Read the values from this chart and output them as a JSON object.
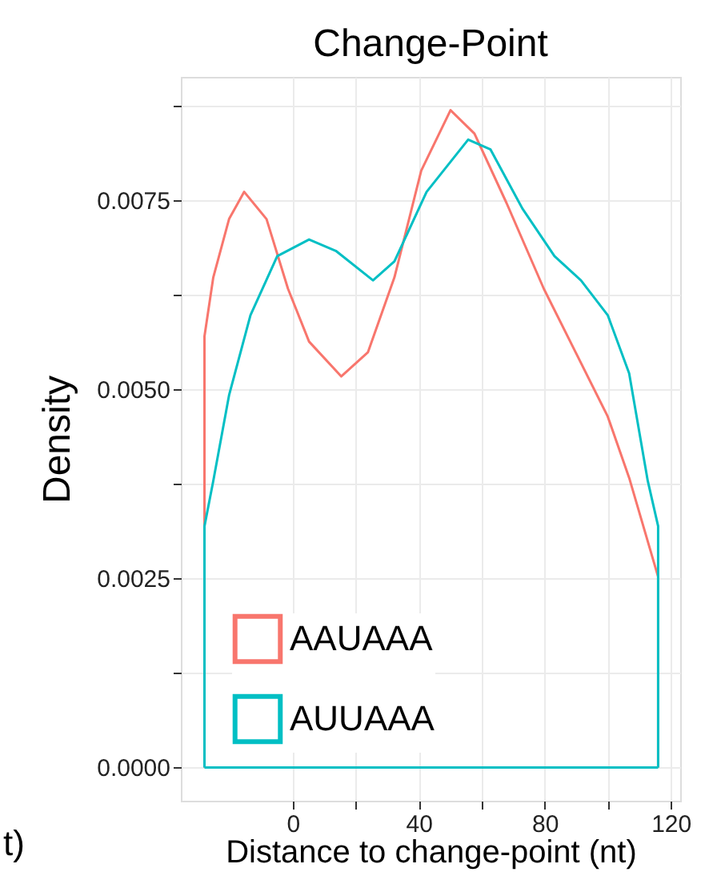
{
  "chart_data": {
    "type": "line",
    "title": "Change-Point",
    "xlabel": "Distance to change-point (nt)",
    "ylabel": "Density",
    "xlim": [
      -35.5,
      123
    ],
    "xticks": [
      0,
      {
        "value": 20,
        "label": null
      },
      40,
      {
        "value": 60,
        "label": null
      },
      80,
      {
        "value": 100,
        "label": null
      },
      120
    ],
    "ylim": [
      -0.00044,
      0.00913
    ],
    "yticks": [
      {
        "value": 0,
        "label": "0.0000"
      },
      {
        "value": 0.00125,
        "label": null
      },
      0.0025,
      {
        "value": 0.00375,
        "label": null
      },
      {
        "value": 0.005,
        "label": "0.0050"
      },
      {
        "value": 0.00625,
        "label": null
      },
      0.0075,
      {
        "value": 0.00875,
        "label": null
      }
    ],
    "ref_lines": [
      {
        "axis": "y",
        "value": 0,
        "color": "#00bfc4"
      }
    ],
    "grid": true,
    "legend": "bottom left",
    "marker": "none",
    "line_style": "solid",
    "annotations": [
      "t)"
    ],
    "series": [
      {
        "name": "AAUAAA",
        "color": "#f8766d",
        "x": [
          -28,
          -28,
          -25.2,
          -20.2,
          -15.4,
          -8.3,
          -1.5,
          5.2,
          15.4,
          23.9,
          32.3,
          40.8,
          50.1,
          57.7,
          67.9,
          79.7,
          89.8,
          100,
          106.8,
          116,
          116
        ],
        "values": [
          0,
          0.0057,
          0.00648,
          0.00725,
          0.00761,
          0.00725,
          0.00633,
          0.00563,
          0.00517,
          0.00549,
          0.00648,
          0.00789,
          0.00869,
          0.00838,
          0.00746,
          0.00633,
          0.00549,
          0.00464,
          0.00383,
          0.00252,
          0
        ]
      },
      {
        "name": "AUUAAA",
        "color": "#00bfc4",
        "x": [
          -28,
          -28,
          -25.2,
          -20.2,
          -13.4,
          -4.9,
          5.2,
          13.7,
          25.5,
          32.3,
          42.5,
          55.7,
          62.8,
          72.9,
          83.1,
          91.5,
          100,
          106.8,
          112.7,
          116,
          116
        ],
        "values": [
          0,
          0.00319,
          0.00379,
          0.00492,
          0.00598,
          0.00676,
          0.00698,
          0.00683,
          0.00644,
          0.00669,
          0.00761,
          0.0083,
          0.00817,
          0.00739,
          0.00676,
          0.00644,
          0.00598,
          0.00521,
          0.00379,
          0.00319,
          0
        ]
      }
    ]
  }
}
